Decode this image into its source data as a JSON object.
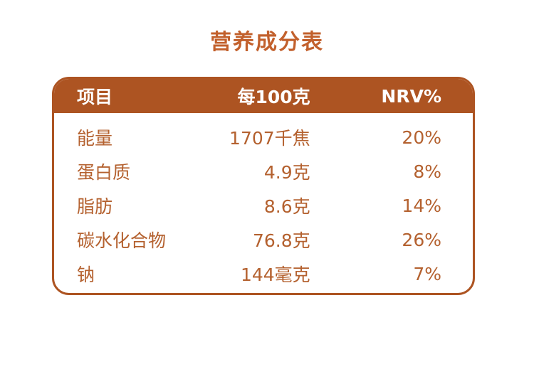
{
  "page": {
    "title": "营养成分表"
  },
  "colors": {
    "accent": "#ad5422",
    "title_text": "#c2602c",
    "body_text": "#b4612f",
    "header_text": "#ffffff",
    "background": "#ffffff"
  },
  "table": {
    "headers": {
      "item": "项目",
      "per_100g": "每100克",
      "nrv": "NRV%"
    },
    "rows": [
      {
        "item": "能量",
        "amount": "1707千焦",
        "nrv": "20%"
      },
      {
        "item": "蛋白质",
        "amount": "4.9克",
        "nrv": "8%"
      },
      {
        "item": "脂肪",
        "amount": "8.6克",
        "nrv": "14%"
      },
      {
        "item": "碳水化合物",
        "amount": "76.8克",
        "nrv": "26%"
      },
      {
        "item": "钠",
        "amount": "144毫克",
        "nrv": "7%"
      }
    ]
  },
  "chart_data": {
    "type": "table",
    "title": "营养成分表",
    "columns": [
      "项目",
      "每100克",
      "NRV%"
    ],
    "rows": [
      [
        "能量",
        "1707千焦",
        "20%"
      ],
      [
        "蛋白质",
        "4.9克",
        "8%"
      ],
      [
        "脂肪",
        "8.6克",
        "14%"
      ],
      [
        "碳水化合物",
        "76.8克",
        "26%"
      ],
      [
        "钠",
        "144毫克",
        "7%"
      ]
    ]
  }
}
